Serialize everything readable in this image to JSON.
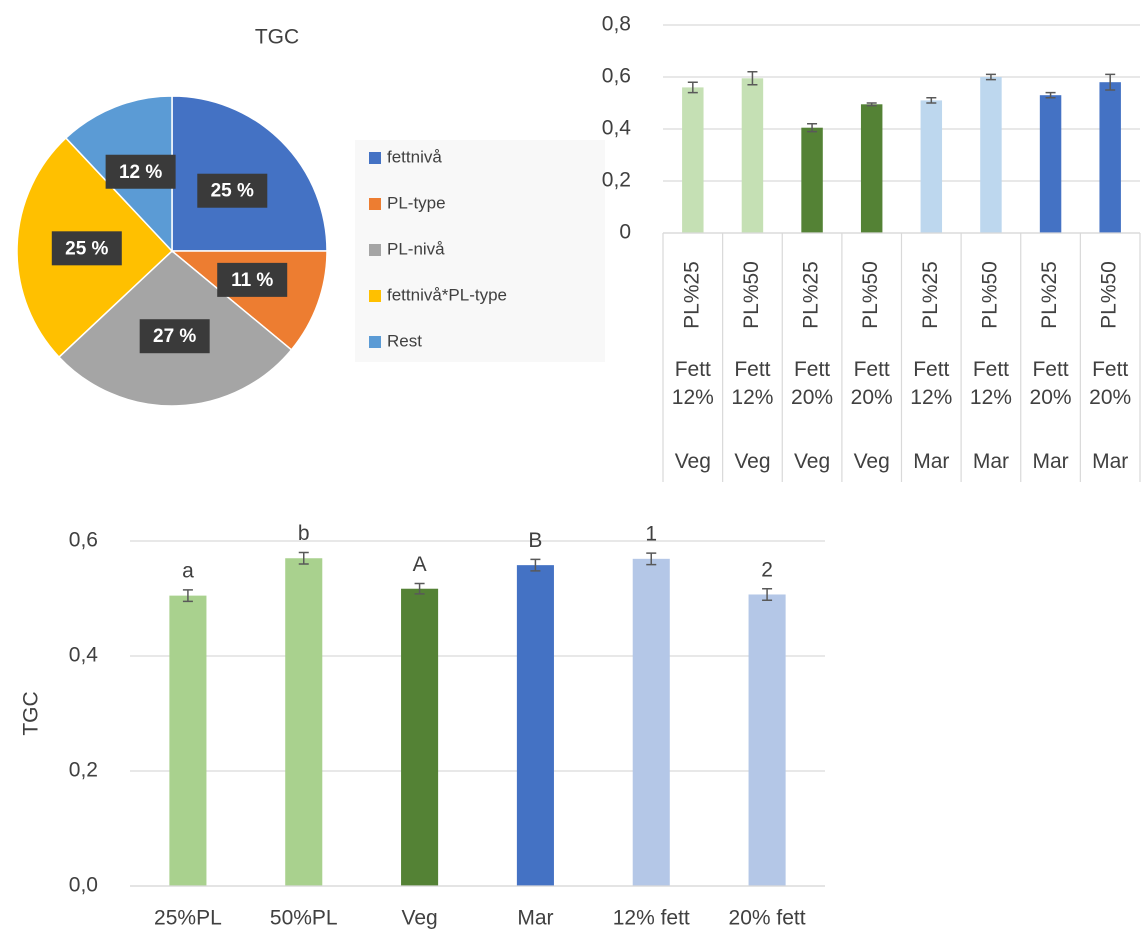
{
  "chart_data": [
    {
      "type": "pie",
      "title": "TGC",
      "categories": [
        "fettnivå",
        "PL-type",
        "PL-nivå",
        "fettnivå*PL-type",
        "Rest"
      ],
      "values": [
        25,
        11,
        27,
        25,
        12
      ],
      "value_labels": [
        "25 %",
        "11 %",
        "27 %",
        "25 %",
        "12 %"
      ],
      "colors": [
        "#4472c4",
        "#ed7d31",
        "#a5a5a5",
        "#ffc000",
        "#5b9bd5"
      ],
      "legend": "right"
    },
    {
      "type": "bar",
      "categories": [
        "PL%25",
        "PL%50",
        "PL%25",
        "PL%50",
        "PL%25",
        "PL%50",
        "PL%25",
        "PL%50"
      ],
      "category_groups": [
        [
          "Fett 12%",
          "Fett 12%",
          "Fett 20%",
          "Fett 20%",
          "Fett 12%",
          "Fett 12%",
          "Fett 20%",
          "Fett 20%"
        ],
        [
          "Veg",
          "Veg",
          "Veg",
          "Veg",
          "Mar",
          "Mar",
          "Mar",
          "Mar"
        ]
      ],
      "values": [
        0.56,
        0.595,
        0.405,
        0.495,
        0.51,
        0.6,
        0.53,
        0.58
      ],
      "errors": [
        0.02,
        0.025,
        0.015,
        0.005,
        0.01,
        0.01,
        0.01,
        0.03
      ],
      "colors": [
        "#c5e0b4",
        "#c5e0b4",
        "#548235",
        "#548235",
        "#bdd7ee",
        "#bdd7ee",
        "#4472c4",
        "#4472c4"
      ],
      "ylim": [
        0,
        0.8
      ],
      "yticks": [
        0,
        {
          "value": 0.2,
          "label": "0,2"
        },
        {
          "value": 0.4,
          "label": "0,4"
        },
        {
          "value": 0.6,
          "label": "0,6"
        },
        {
          "value": 0.8,
          "label": "0,8"
        }
      ],
      "grid": true
    },
    {
      "type": "bar",
      "ylabel": "TGC",
      "categories": [
        "25%PL",
        "50%PL",
        "Veg",
        "Mar",
        "12% fett",
        "20% fett"
      ],
      "values": [
        0.505,
        0.57,
        0.517,
        0.558,
        0.569,
        0.507
      ],
      "errors": [
        0.01,
        0.01,
        0.009,
        0.01,
        0.01,
        0.01
      ],
      "annotations": [
        "a",
        "b",
        "A",
        "B",
        "1",
        "2"
      ],
      "colors": [
        "#a9d18e",
        "#a9d18e",
        "#548235",
        "#4472c4",
        "#b4c7e7",
        "#b4c7e7"
      ],
      "ylim": [
        0,
        0.6
      ],
      "yticks": [
        {
          "value": 0,
          "label": "0,0"
        },
        {
          "value": 0.2,
          "label": "0,2"
        },
        {
          "value": 0.4,
          "label": "0,4"
        },
        {
          "value": 0.6,
          "label": "0,6"
        }
      ],
      "grid": true
    }
  ]
}
